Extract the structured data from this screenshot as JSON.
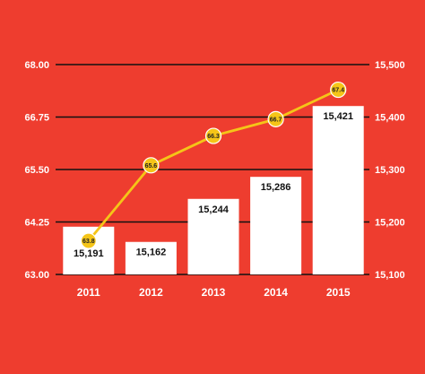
{
  "chart_data": {
    "type": "bar",
    "categories": [
      "2011",
      "2012",
      "2013",
      "2014",
      "2015"
    ],
    "series": [
      {
        "type": "bar",
        "axis": "right",
        "values": [
          15191,
          15162,
          15244,
          15286,
          15421
        ],
        "labels": [
          "15,191",
          "15,162",
          "15,244",
          "15,286",
          "15,421"
        ]
      },
      {
        "type": "line",
        "axis": "left",
        "values": [
          63.8,
          65.6,
          66.3,
          66.7,
          67.4
        ],
        "labels": [
          "63.8",
          "65.6",
          "66.3",
          "66.7",
          "67.4"
        ]
      }
    ],
    "y_left": {
      "lim": [
        63.0,
        68.0
      ],
      "ticks": [
        63.0,
        64.25,
        65.5,
        66.75,
        68.0
      ],
      "tick_labels": [
        "63.00",
        "64.25",
        "65.50",
        "66.75",
        "68.00"
      ]
    },
    "y_right": {
      "lim": [
        15100,
        15500
      ],
      "ticks": [
        15100,
        15200,
        15300,
        15400,
        15500
      ],
      "tick_labels": [
        "15,100",
        "15,200",
        "15,300",
        "15,400",
        "15,500"
      ]
    },
    "grid": true,
    "legend": "none",
    "colors": {
      "background": "#EE3D2F",
      "bar": "#FFFFFF",
      "line": "#F5C518",
      "marker": "#F5C518",
      "grid": "#111111",
      "text": "#FFFFFF"
    }
  }
}
